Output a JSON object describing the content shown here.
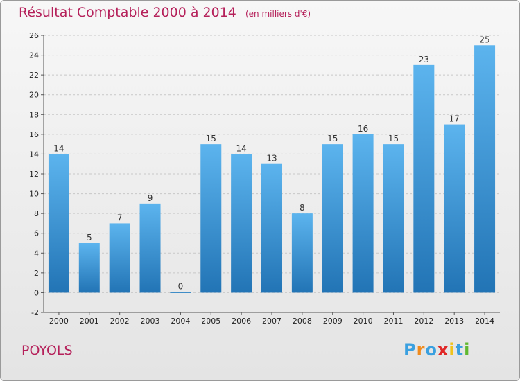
{
  "header": {
    "title": "Résultat Comptable 2000 à 2014",
    "subtitle": "(en milliers d'€)"
  },
  "footer": {
    "place": "POYOLS",
    "logo_letters": [
      "P",
      "r",
      "o",
      "x",
      "i",
      "t",
      "i"
    ],
    "logo_colors": [
      "#3aa0e0",
      "#f08a1c",
      "#3aa0e0",
      "#e02828",
      "#f0c31c",
      "#3aa0e0",
      "#60b830"
    ]
  },
  "colors": {
    "bar_top": "#5cb4ee",
    "bar_bottom": "#2274b5",
    "text_accent": "#b5205a"
  },
  "chart_data": {
    "type": "bar",
    "title": "Résultat Comptable 2000 à 2014",
    "subtitle": "(en milliers d'€)",
    "categories": [
      "2000",
      "2001",
      "2002",
      "2003",
      "2004",
      "2005",
      "2006",
      "2007",
      "2008",
      "2009",
      "2010",
      "2011",
      "2012",
      "2013",
      "2014"
    ],
    "values": [
      14,
      5,
      7,
      9,
      0,
      15,
      14,
      13,
      8,
      15,
      16,
      15,
      23,
      17,
      25
    ],
    "ylim": [
      -2,
      26
    ],
    "yticks": [
      -2,
      0,
      2,
      4,
      6,
      8,
      10,
      12,
      14,
      16,
      18,
      20,
      22,
      24,
      26
    ],
    "grid": "horizontal dashed"
  }
}
